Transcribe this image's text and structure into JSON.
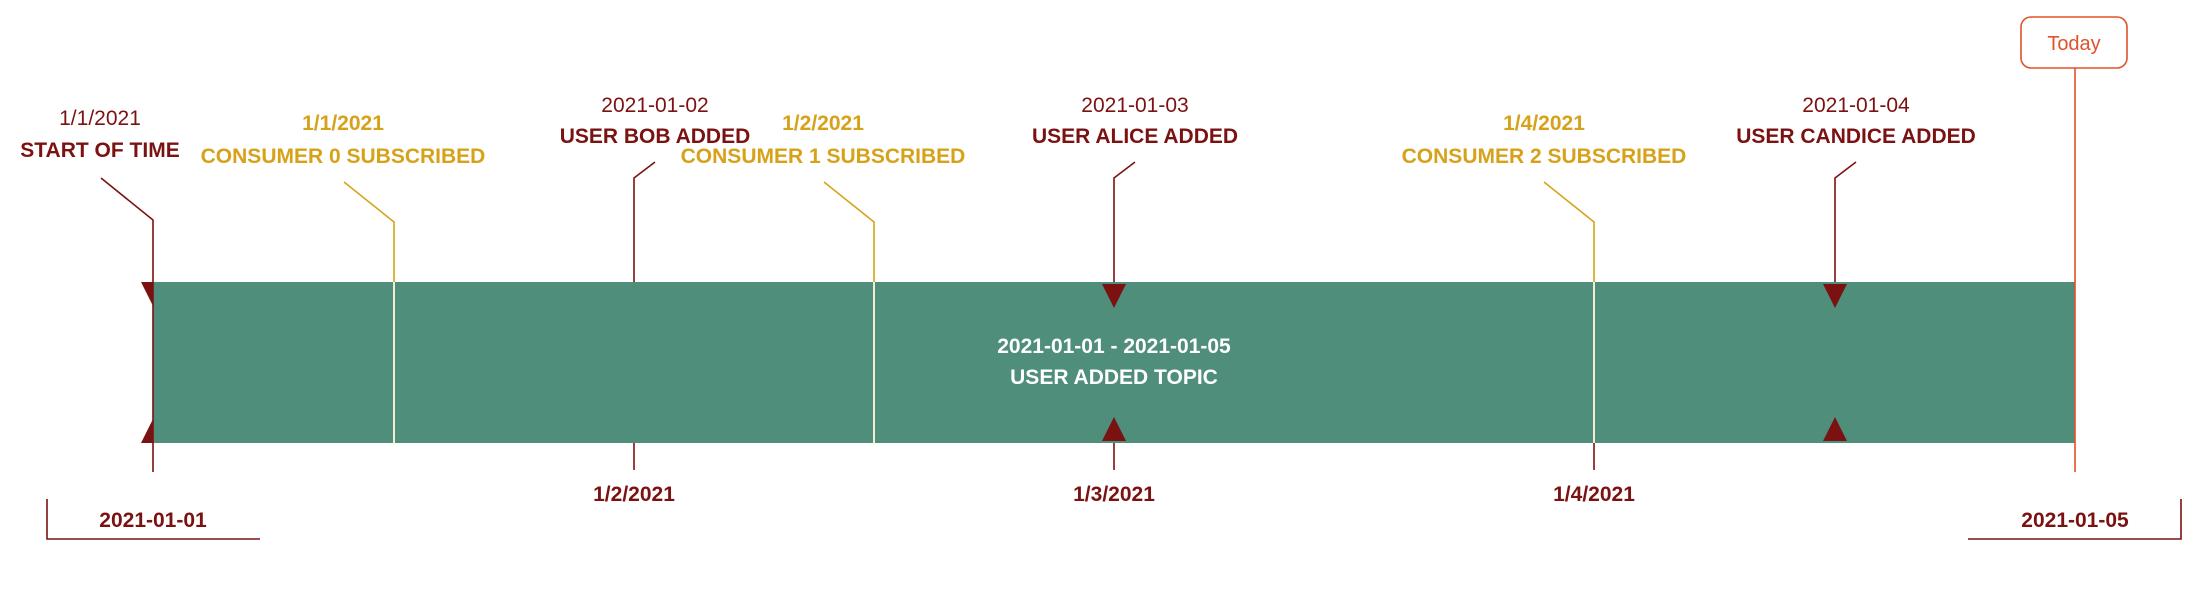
{
  "colors": {
    "band": "#4e8e7b",
    "dark_red": "#7b1212",
    "gold": "#d6a21a",
    "today": "#e0522a",
    "band_divider": "#f3ecd2"
  },
  "today_label": "Today",
  "band": {
    "range_label": "2021-01-01 - 2021-01-05",
    "topic_label": "USER ADDED TOPIC"
  },
  "range_ends": {
    "start": "2021-01-01",
    "end": "2021-01-05"
  },
  "axis_ticks": [
    "1/2/2021",
    "1/3/2021",
    "1/4/2021"
  ],
  "milestones": [
    {
      "kind": "start",
      "date": "1/1/2021",
      "title": "START OF TIME"
    },
    {
      "kind": "consumer",
      "date": "1/1/2021",
      "title": "CONSUMER 0 SUBSCRIBED"
    },
    {
      "kind": "user",
      "date": "2021-01-02",
      "title": "USER BOB ADDED"
    },
    {
      "kind": "consumer",
      "date": "1/2/2021",
      "title": "CONSUMER 1 SUBSCRIBED"
    },
    {
      "kind": "user",
      "date": "2021-01-03",
      "title": "USER ALICE ADDED"
    },
    {
      "kind": "consumer",
      "date": "1/4/2021",
      "title": "CONSUMER 2 SUBSCRIBED"
    },
    {
      "kind": "user",
      "date": "2021-01-04",
      "title": "USER CANDICE ADDED"
    }
  ]
}
